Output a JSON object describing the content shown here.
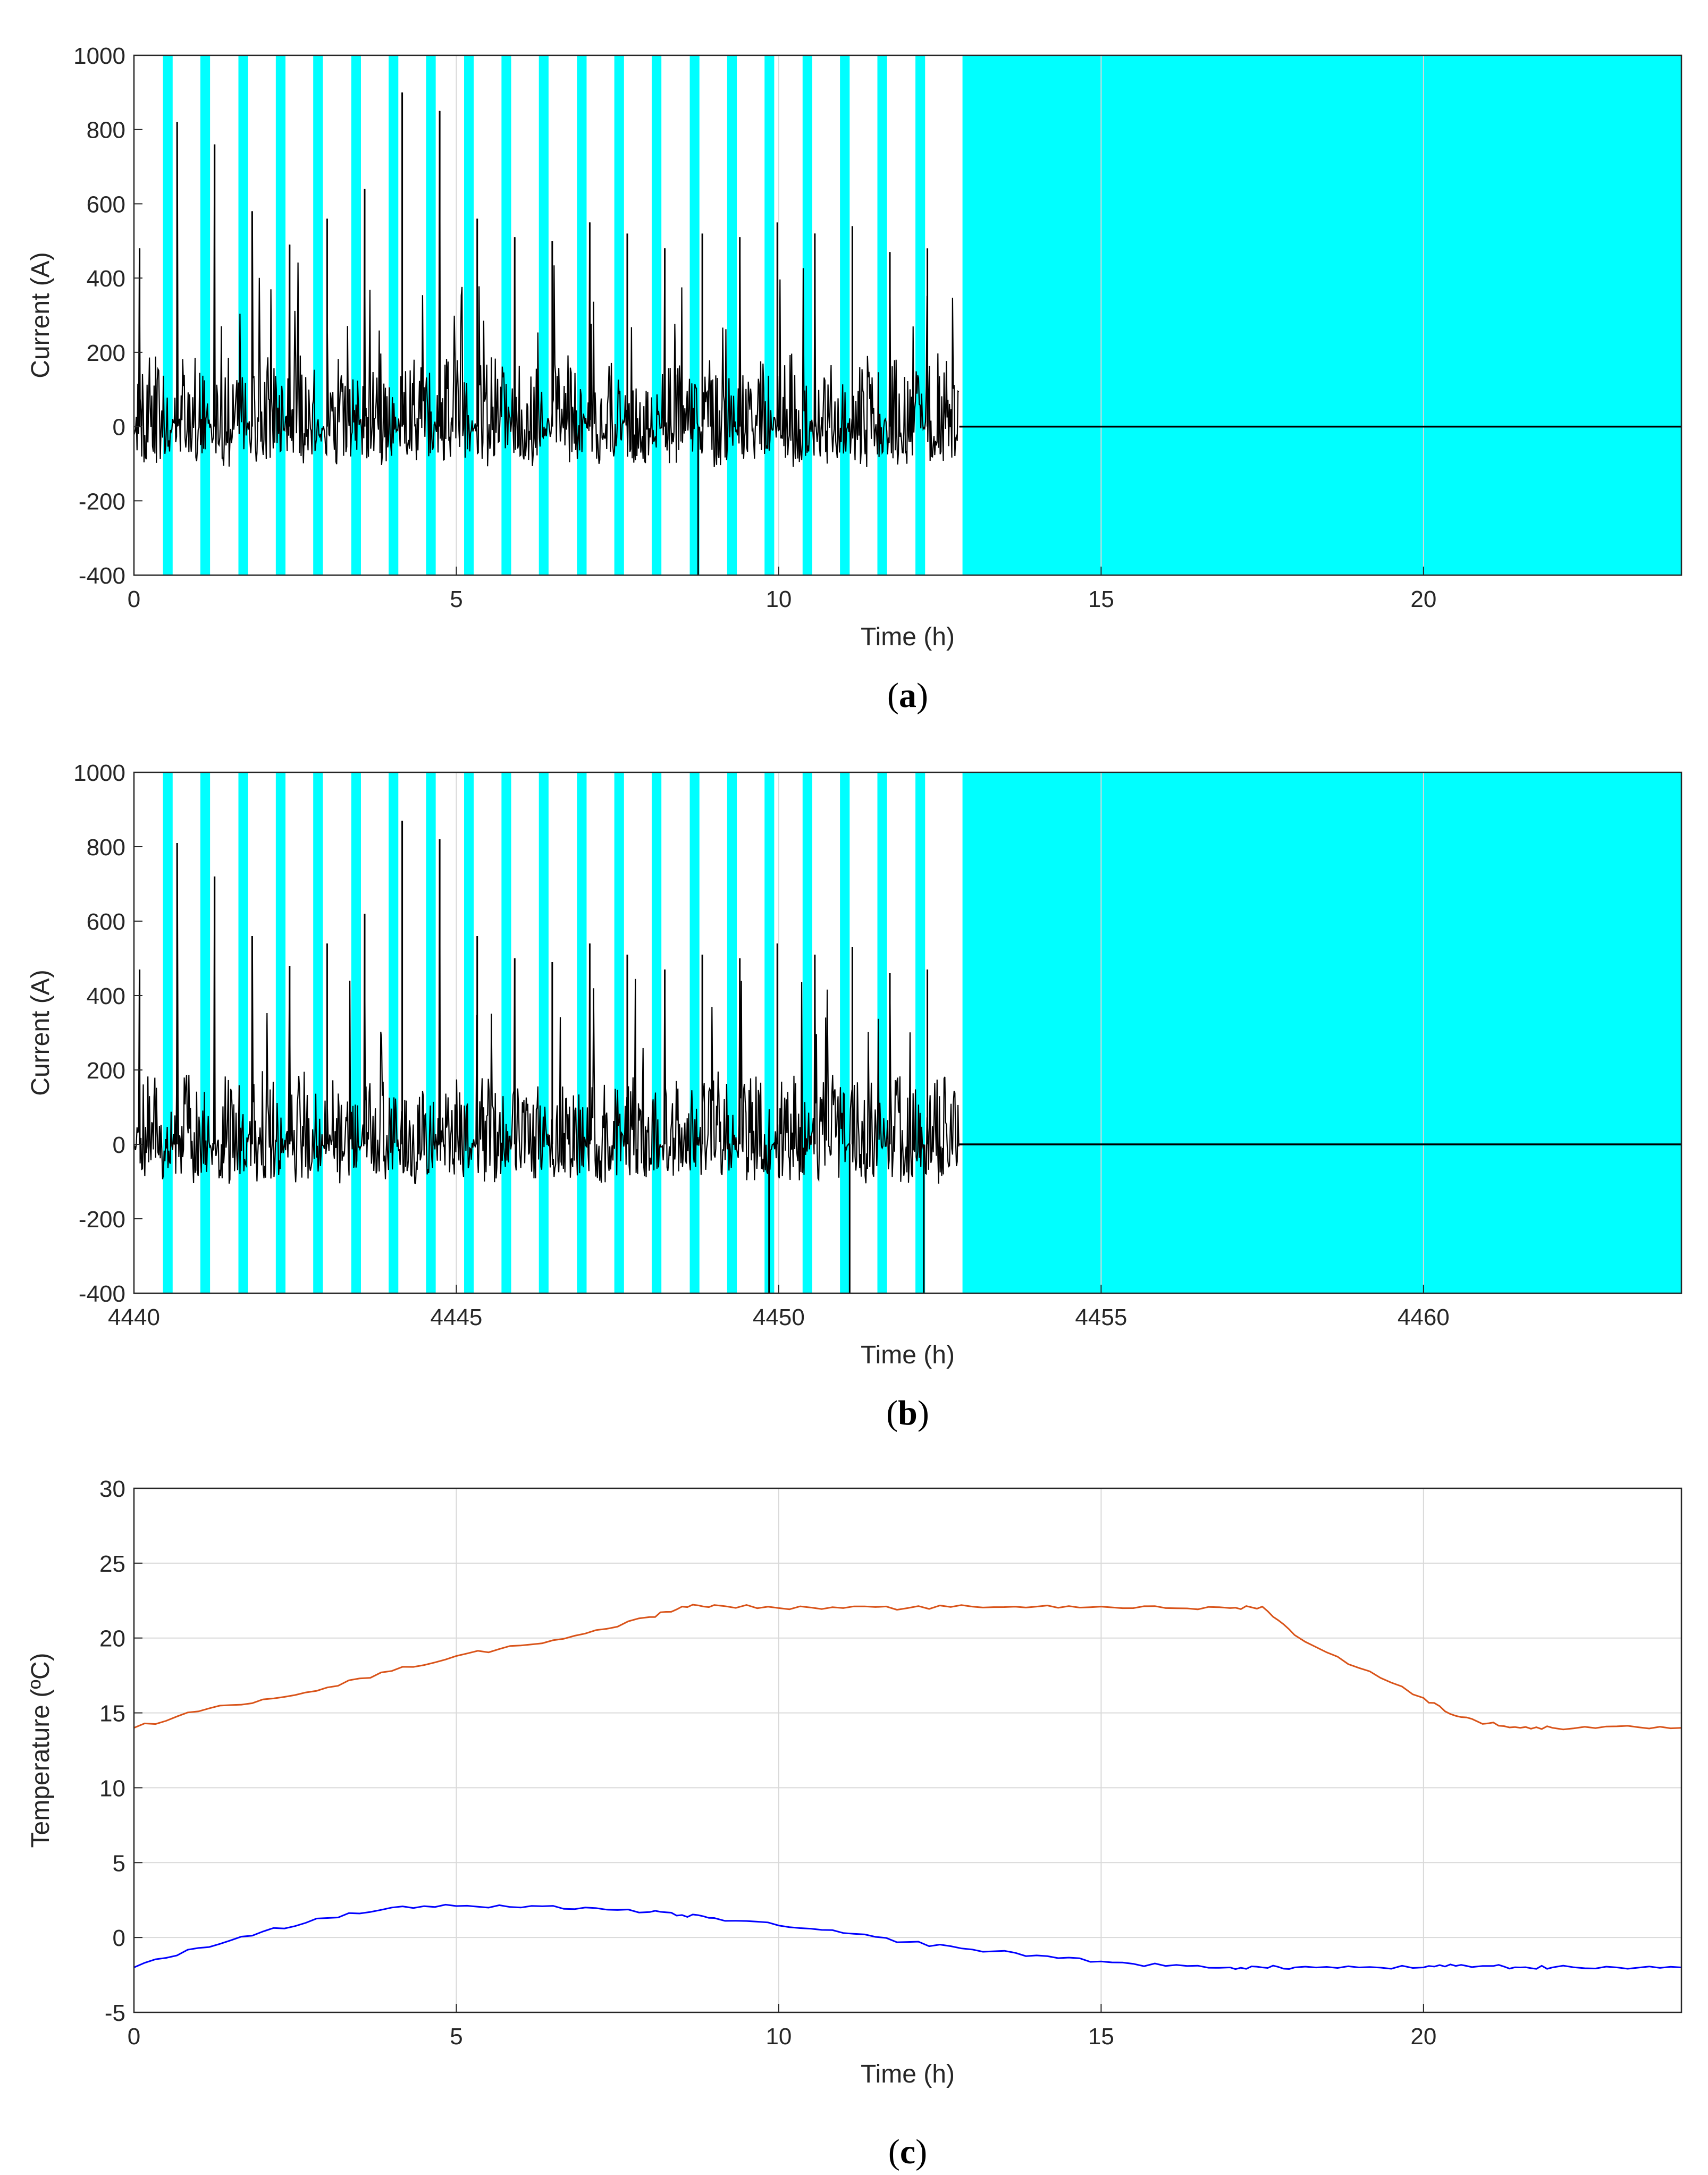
{
  "colors": {
    "rest_shading": "#00ffff",
    "current_trace": "#000000",
    "series_upper": "#d95319",
    "series_lower": "#0000ff",
    "axes": "#262626",
    "grid": "#d9d9d9"
  },
  "chart_data": [
    {
      "panel": "(a)",
      "caption_letter": "a",
      "type": "line",
      "title": "",
      "xlabel": "Time (h)",
      "ylabel": "Current (A)",
      "xlim": [
        0,
        24
      ],
      "ylim": [
        -400,
        1000
      ],
      "xticks": [
        0,
        5,
        10,
        15,
        20
      ],
      "xtick_labels": [
        "0",
        "5",
        "10",
        "15",
        "20"
      ],
      "yticks": [
        -400,
        -200,
        0,
        200,
        400,
        600,
        800,
        1000
      ],
      "ytick_labels": [
        "-400",
        "-200",
        "0",
        "200",
        "400",
        "600",
        "800",
        "1000"
      ],
      "grid": "vertical lines at x ticks",
      "shaded_intervals_h": [
        [
          0.45,
          0.6
        ],
        [
          1.03,
          1.18
        ],
        [
          1.62,
          1.77
        ],
        [
          2.2,
          2.35
        ],
        [
          2.78,
          2.93
        ],
        [
          3.37,
          3.52
        ],
        [
          3.95,
          4.1
        ],
        [
          4.53,
          4.68
        ],
        [
          5.12,
          5.27
        ],
        [
          5.7,
          5.85
        ],
        [
          6.28,
          6.43
        ],
        [
          6.87,
          7.02
        ],
        [
          7.45,
          7.6
        ],
        [
          8.03,
          8.18
        ],
        [
          8.62,
          8.77
        ],
        [
          9.2,
          9.35
        ],
        [
          9.78,
          9.93
        ],
        [
          10.37,
          10.52
        ],
        [
          10.95,
          11.1
        ],
        [
          11.53,
          11.68
        ],
        [
          12.12,
          12.27
        ],
        [
          12.85,
          24
        ]
      ],
      "current_series": {
        "active_window_h": [
          0,
          12.8
        ],
        "rest_value_A": 0,
        "cycle_count": 22,
        "cycle_peaks_A": [
          480,
          820,
          760,
          580,
          490,
          560,
          640,
          900,
          850,
          560,
          510,
          500,
          550,
          520,
          480,
          520,
          510,
          550,
          520,
          540,
          470,
          480
        ],
        "typical_min_A": -200,
        "spikes_to_min_at_h": [
          8.75
        ]
      }
    },
    {
      "panel": "(b)",
      "caption_letter": "b",
      "type": "line",
      "title": "",
      "xlabel": "Time (h)",
      "ylabel": "Current (A)",
      "xlim": [
        4440,
        4464
      ],
      "ylim": [
        -400,
        1000
      ],
      "xticks": [
        4440,
        4445,
        4450,
        4455,
        4460
      ],
      "xtick_labels": [
        "4440",
        "4445",
        "4450",
        "4455",
        "4460"
      ],
      "yticks": [
        -400,
        -200,
        0,
        200,
        400,
        600,
        800,
        1000
      ],
      "ytick_labels": [
        "-400",
        "-200",
        "0",
        "200",
        "400",
        "600",
        "800",
        "1000"
      ],
      "grid": "vertical lines at x ticks",
      "shaded_intervals_h": [
        [
          4440.45,
          4440.6
        ],
        [
          4441.03,
          4441.18
        ],
        [
          4441.62,
          4441.77
        ],
        [
          4442.2,
          4442.35
        ],
        [
          4442.78,
          4442.93
        ],
        [
          4443.37,
          4443.52
        ],
        [
          4443.95,
          4444.1
        ],
        [
          4444.53,
          4444.68
        ],
        [
          4445.12,
          4445.27
        ],
        [
          4445.7,
          4445.85
        ],
        [
          4446.28,
          4446.43
        ],
        [
          4446.87,
          4447.02
        ],
        [
          4447.45,
          4447.6
        ],
        [
          4448.03,
          4448.18
        ],
        [
          4448.62,
          4448.77
        ],
        [
          4449.2,
          4449.35
        ],
        [
          4449.78,
          4449.93
        ],
        [
          4450.37,
          4450.52
        ],
        [
          4450.95,
          4451.1
        ],
        [
          4451.53,
          4451.68
        ],
        [
          4452.12,
          4452.27
        ],
        [
          4452.85,
          4464
        ]
      ],
      "current_series": {
        "active_window_h": [
          4440,
          4452.8
        ],
        "rest_value_A": 0,
        "cycle_count": 22,
        "cycle_peaks_A": [
          470,
          810,
          720,
          560,
          480,
          540,
          620,
          870,
          820,
          560,
          500,
          490,
          540,
          510,
          470,
          510,
          500,
          540,
          510,
          530,
          460,
          470
        ],
        "typical_min_A": -200,
        "spikes_to_min_at_h": [
          4449.85,
          4451.1,
          4452.25
        ]
      }
    },
    {
      "panel": "(c)",
      "caption_letter": "c",
      "type": "line",
      "title": "",
      "xlabel": "Time (h)",
      "ylabel": "Temperature (ºC)",
      "xlim": [
        0,
        24
      ],
      "ylim": [
        -5,
        30
      ],
      "xticks": [
        0,
        5,
        10,
        15,
        20
      ],
      "xtick_labels": [
        "0",
        "5",
        "10",
        "15",
        "20"
      ],
      "yticks": [
        -5,
        0,
        5,
        10,
        15,
        20,
        25,
        30
      ],
      "ytick_labels": [
        "-5",
        "0",
        "5",
        "10",
        "15",
        "20",
        "25",
        "30"
      ],
      "grid": "on",
      "x": [
        0,
        1,
        2,
        3,
        4,
        5,
        6,
        7,
        8,
        8.5,
        9,
        10,
        11,
        12,
        13,
        14,
        15,
        16,
        17,
        17.5,
        18,
        19,
        20,
        20.5,
        21,
        21.5,
        22,
        23,
        24
      ],
      "series": [
        {
          "color": "#d95319",
          "values": [
            14,
            15.1,
            15.9,
            16.7,
            17.8,
            18.8,
            19.5,
            20.3,
            21.4,
            22.1,
            22.2,
            22.0,
            22.0,
            22.0,
            22.1,
            22.1,
            22.1,
            22.0,
            22.0,
            22.1,
            20.2,
            18.0,
            16.0,
            14.8,
            14.3,
            14.0,
            14.0,
            14.1,
            14.0
          ]
        },
        {
          "color": "#0000ff",
          "values": [
            -2,
            -0.7,
            0.4,
            1.3,
            2.0,
            2.1,
            2.0,
            2.0,
            1.7,
            1.5,
            1.3,
            0.8,
            0.3,
            -0.3,
            -0.8,
            -1.2,
            -1.6,
            -1.9,
            -2.0,
            -2.0,
            -2.0,
            -2.0,
            -2.0,
            -1.9,
            -1.9,
            -2.0,
            -2.0,
            -2.0,
            -2.0
          ]
        }
      ]
    }
  ]
}
